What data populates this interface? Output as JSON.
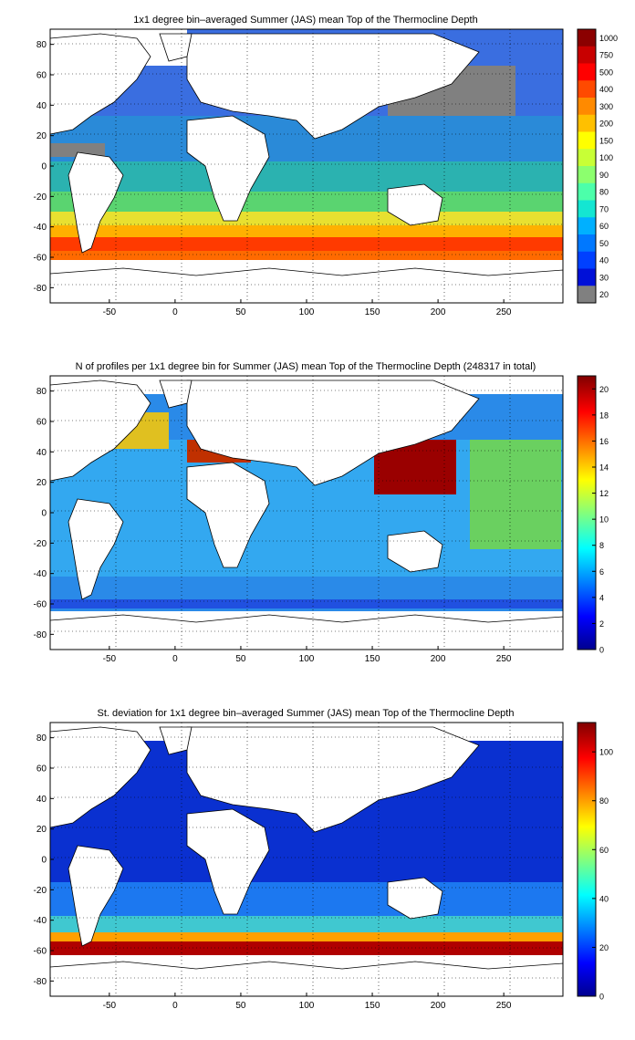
{
  "panels": [
    {
      "title": "1x1 degree bin–averaged Summer (JAS) mean Top of the Thermocline Depth",
      "x_ticks": [
        -50,
        0,
        50,
        100,
        150,
        200,
        250
      ],
      "y_ticks": [
        80,
        60,
        40,
        20,
        0,
        -20,
        -40,
        -60,
        -80
      ],
      "colorbar": {
        "labels": [
          "1000",
          "750",
          "500",
          "400",
          "300",
          "200",
          "150",
          "100",
          "90",
          "80",
          "70",
          "60",
          "50",
          "40",
          "30",
          "20"
        ],
        "colors": [
          "#8b0000",
          "#c80000",
          "#ff0000",
          "#ff4a00",
          "#ff8a00",
          "#ffc000",
          "#ffff00",
          "#c8ff36",
          "#8cff6e",
          "#4cffaa",
          "#14e6d2",
          "#00b0ff",
          "#0078ff",
          "#0040ff",
          "#0010d8",
          "#808080"
        ]
      }
    },
    {
      "title": "N of profiles per 1x1 degree bin for Summer (JAS) mean Top of the Thermocline Depth  (248317 in total)",
      "x_ticks": [
        -50,
        0,
        50,
        100,
        150,
        200,
        250
      ],
      "y_ticks": [
        80,
        60,
        40,
        20,
        0,
        -20,
        -40,
        -60,
        -80
      ],
      "colorbar": {
        "ticks": [
          "20",
          "18",
          "16",
          "14",
          "12",
          "10",
          "8",
          "6",
          "4",
          "2",
          "0"
        ],
        "min": 0,
        "max": 21
      }
    },
    {
      "title": "St. deviation for 1x1 degree bin–averaged Summer (JAS) mean Top of the Thermocline Depth",
      "x_ticks": [
        -50,
        0,
        50,
        100,
        150,
        200,
        250
      ],
      "y_ticks": [
        80,
        60,
        40,
        20,
        0,
        -20,
        -40,
        -60,
        -80
      ],
      "colorbar": {
        "ticks": [
          "100",
          "80",
          "60",
          "40",
          "20",
          "0"
        ],
        "min": 0,
        "max": 112
      }
    }
  ],
  "map": {
    "x_range": [
      -95,
      295
    ],
    "y_range": [
      -90,
      90
    ],
    "land_color": "#ffffff",
    "grid": "dotted"
  }
}
